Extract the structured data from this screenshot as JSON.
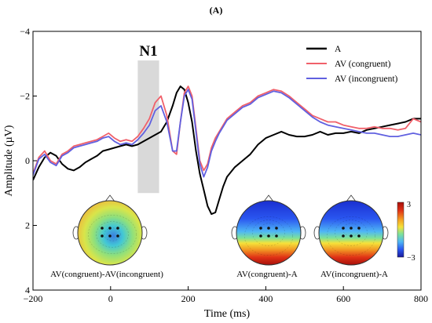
{
  "chart_data": {
    "type": "line",
    "panel_label": "(A)",
    "component_label": "N1",
    "xlabel": "Time (ms)",
    "ylabel": "Amplitude (µV)",
    "xlim": [
      -200,
      800
    ],
    "ylim": [
      4,
      -4
    ],
    "y_axis_inverted": true,
    "x_ticks": [
      -200,
      0,
      200,
      400,
      600,
      800
    ],
    "x_tick_labels": [
      "−200",
      "0",
      "200",
      "400",
      "600",
      "800"
    ],
    "y_ticks": [
      -4,
      -2,
      0,
      2,
      4
    ],
    "y_tick_labels": [
      "−4",
      "−2",
      "0",
      "2",
      "4"
    ],
    "shaded_window": {
      "x_start": 70,
      "x_end": 125,
      "y_top": -3.1,
      "y_bottom": 1.0,
      "color": "#d9d9d9"
    },
    "legend_position": "top-right",
    "series": [
      {
        "name": "A",
        "color": "#000000",
        "x": [
          -200,
          -185,
          -170,
          -155,
          -140,
          -125,
          -110,
          -95,
          -80,
          -65,
          -50,
          -35,
          -20,
          -5,
          10,
          25,
          40,
          55,
          70,
          85,
          100,
          115,
          130,
          145,
          160,
          170,
          180,
          190,
          200,
          210,
          220,
          230,
          240,
          250,
          260,
          270,
          280,
          290,
          300,
          320,
          340,
          360,
          380,
          400,
          420,
          440,
          460,
          480,
          500,
          520,
          540,
          560,
          580,
          600,
          620,
          640,
          660,
          680,
          700,
          720,
          740,
          760,
          780,
          800
        ],
        "y": [
          0.6,
          0.2,
          -0.1,
          -0.25,
          -0.15,
          0.1,
          0.25,
          0.3,
          0.2,
          0.05,
          -0.05,
          -0.15,
          -0.3,
          -0.35,
          -0.4,
          -0.45,
          -0.5,
          -0.45,
          -0.5,
          -0.6,
          -0.7,
          -0.8,
          -0.9,
          -1.2,
          -1.7,
          -2.1,
          -2.3,
          -2.2,
          -1.8,
          -1.2,
          -0.3,
          0.4,
          0.9,
          1.4,
          1.65,
          1.6,
          1.2,
          0.8,
          0.5,
          0.2,
          0.0,
          -0.2,
          -0.5,
          -0.7,
          -0.8,
          -0.9,
          -0.8,
          -0.75,
          -0.75,
          -0.8,
          -0.9,
          -0.8,
          -0.85,
          -0.85,
          -0.9,
          -0.85,
          -0.95,
          -1.0,
          -1.05,
          -1.1,
          -1.15,
          -1.2,
          -1.3,
          -1.3
        ]
      },
      {
        "name": "AV (congruent)",
        "color": "#f0606a",
        "x": [
          -200,
          -185,
          -170,
          -155,
          -140,
          -125,
          -110,
          -95,
          -80,
          -65,
          -50,
          -35,
          -20,
          -5,
          10,
          25,
          40,
          55,
          70,
          85,
          100,
          115,
          130,
          145,
          160,
          170,
          180,
          190,
          200,
          210,
          220,
          230,
          240,
          250,
          260,
          270,
          280,
          290,
          300,
          320,
          340,
          360,
          380,
          400,
          420,
          440,
          460,
          480,
          500,
          520,
          540,
          560,
          580,
          600,
          620,
          640,
          660,
          680,
          700,
          720,
          740,
          760,
          780,
          800
        ],
        "y": [
          0.4,
          -0.1,
          -0.3,
          0.0,
          0.1,
          -0.2,
          -0.3,
          -0.45,
          -0.5,
          -0.55,
          -0.6,
          -0.65,
          -0.75,
          -0.85,
          -0.7,
          -0.6,
          -0.65,
          -0.6,
          -0.75,
          -1.0,
          -1.3,
          -1.8,
          -2.0,
          -1.4,
          -0.3,
          -0.2,
          -1.2,
          -2.1,
          -2.3,
          -2.0,
          -1.0,
          0.0,
          0.3,
          0.1,
          -0.4,
          -0.7,
          -0.9,
          -1.1,
          -1.3,
          -1.5,
          -1.7,
          -1.8,
          -2.0,
          -2.1,
          -2.2,
          -2.15,
          -2.0,
          -1.8,
          -1.6,
          -1.4,
          -1.3,
          -1.2,
          -1.2,
          -1.1,
          -1.05,
          -1.0,
          -1.0,
          -1.05,
          -1.0,
          -1.0,
          -0.95,
          -1.0,
          -1.3,
          -1.2
        ]
      },
      {
        "name": "AV (incongruent)",
        "color": "#6060e0",
        "x": [
          -200,
          -185,
          -170,
          -155,
          -140,
          -125,
          -110,
          -95,
          -80,
          -65,
          -50,
          -35,
          -20,
          -5,
          10,
          25,
          40,
          55,
          70,
          85,
          100,
          115,
          130,
          145,
          160,
          170,
          180,
          190,
          200,
          210,
          220,
          230,
          240,
          250,
          260,
          270,
          280,
          290,
          300,
          320,
          340,
          360,
          380,
          400,
          420,
          440,
          460,
          480,
          500,
          520,
          540,
          560,
          580,
          600,
          620,
          640,
          660,
          680,
          700,
          720,
          740,
          760,
          780,
          800
        ],
        "y": [
          0.45,
          -0.05,
          -0.2,
          0.05,
          0.15,
          -0.15,
          -0.25,
          -0.4,
          -0.45,
          -0.5,
          -0.55,
          -0.6,
          -0.7,
          -0.75,
          -0.6,
          -0.5,
          -0.55,
          -0.5,
          -0.65,
          -0.85,
          -1.1,
          -1.55,
          -1.7,
          -1.2,
          -0.3,
          -0.3,
          -1.2,
          -2.0,
          -2.2,
          -1.9,
          -0.9,
          0.1,
          0.5,
          0.2,
          -0.3,
          -0.6,
          -0.85,
          -1.05,
          -1.25,
          -1.45,
          -1.65,
          -1.75,
          -1.95,
          -2.05,
          -2.15,
          -2.1,
          -1.95,
          -1.75,
          -1.55,
          -1.35,
          -1.2,
          -1.1,
          -1.05,
          -1.0,
          -0.95,
          -0.9,
          -0.85,
          -0.85,
          -0.8,
          -0.75,
          -0.75,
          -0.8,
          -0.85,
          -0.8
        ]
      }
    ],
    "topomaps": [
      {
        "label": "AV(congruent)-AV(incongruent)",
        "scheme": "mixed"
      },
      {
        "label": "AV(congruent)-A",
        "scheme": "gradient"
      },
      {
        "label": "AV(incongruent)-A",
        "scheme": "gradient"
      }
    ],
    "colorbar": {
      "max_label": "3",
      "min_label": "−3"
    }
  }
}
